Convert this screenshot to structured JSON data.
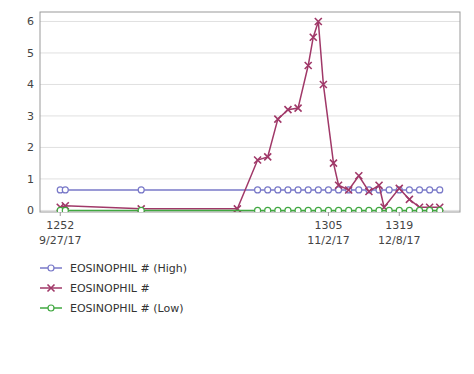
{
  "chart_data": {
    "type": "line",
    "series": [
      {
        "name": "EOSINOPHIL # (High)",
        "color": "#7878c8",
        "marker": "circle",
        "line_style": "solid",
        "x": [
          1252,
          1253,
          1268,
          1291,
          1293,
          1295,
          1297,
          1299,
          1301,
          1303,
          1305,
          1307,
          1309,
          1311,
          1313,
          1315,
          1317,
          1319,
          1321,
          1323,
          1325,
          1327
        ],
        "values": [
          0.65,
          0.65,
          0.65,
          0.65,
          0.65,
          0.65,
          0.65,
          0.65,
          0.65,
          0.65,
          0.65,
          0.65,
          0.65,
          0.65,
          0.65,
          0.65,
          0.65,
          0.65,
          0.65,
          0.65,
          0.65,
          0.65
        ]
      },
      {
        "name": "EOSINOPHIL #",
        "color": "#a03868",
        "marker": "x",
        "line_style": "solid",
        "x": [
          1252,
          1253,
          1268,
          1287,
          1291,
          1293,
          1295,
          1297,
          1299,
          1301,
          1302,
          1303,
          1304,
          1306,
          1307,
          1309,
          1311,
          1313,
          1315,
          1316,
          1319,
          1321,
          1323,
          1325,
          1327
        ],
        "values": [
          0.1,
          0.15,
          0.05,
          0.05,
          1.6,
          1.7,
          2.9,
          3.2,
          3.25,
          4.6,
          5.5,
          6.0,
          4.0,
          1.5,
          0.8,
          0.65,
          1.1,
          0.6,
          0.8,
          0.1,
          0.7,
          0.35,
          0.1,
          0.1,
          0.1
        ]
      },
      {
        "name": "EOSINOPHIL # (Low)",
        "color": "#40a840",
        "marker": "circle",
        "line_style": "solid",
        "x": [
          1252,
          1253,
          1268,
          1291,
          1293,
          1295,
          1297,
          1299,
          1301,
          1303,
          1305,
          1307,
          1309,
          1311,
          1313,
          1315,
          1317,
          1319,
          1321,
          1323,
          1325,
          1327
        ],
        "values": [
          0.0,
          0.0,
          0.0,
          0.0,
          0.0,
          0.0,
          0.0,
          0.0,
          0.0,
          0.0,
          0.0,
          0.0,
          0.0,
          0.0,
          0.0,
          0.0,
          0.0,
          0.0,
          0.0,
          0.0,
          0.0,
          0.0
        ]
      }
    ],
    "xlim": [
      1248,
      1331
    ],
    "xticks": [
      1252,
      1305,
      1319
    ],
    "ylim": [
      -0.05,
      6.3
    ],
    "yticks": [
      0,
      1,
      2,
      3,
      4,
      5,
      6
    ],
    "annotations": [
      {
        "text": "9/27/17",
        "x": 1252
      },
      {
        "text": "11/2/17",
        "x": 1305
      },
      {
        "text": "12/8/17",
        "x": 1319
      }
    ],
    "grid": true,
    "legend": "bottom"
  }
}
